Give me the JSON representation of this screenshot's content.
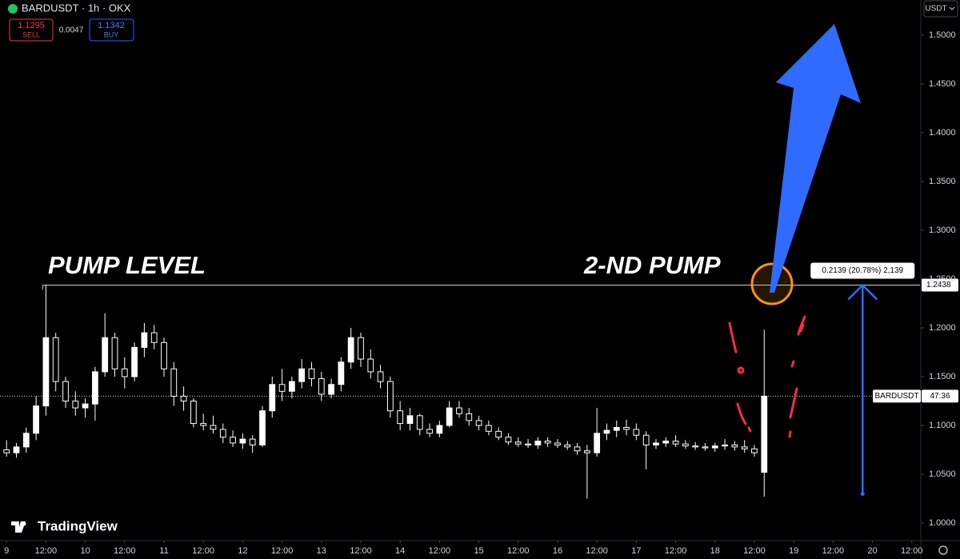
{
  "header": {
    "symbol": "BARDUSDT · 1h · OKX",
    "sell_price": "1.1295",
    "sell_label": "SELL",
    "spread": "0.0047",
    "buy_price": "1.1342",
    "buy_label": "BUY",
    "currency": "USDT",
    "brand": "TradingView"
  },
  "chart_data": {
    "type": "candlestick",
    "color": "#ffffff",
    "x": [
      0,
      3,
      6,
      9,
      12,
      15,
      18,
      21,
      24,
      27,
      30,
      33,
      36,
      39,
      42,
      45,
      48,
      51,
      54,
      57,
      60,
      63,
      66,
      69,
      72,
      75,
      78,
      81,
      84,
      87,
      90,
      93,
      96,
      99,
      102,
      105,
      108,
      111,
      114,
      117,
      120,
      123,
      126,
      129,
      132,
      135,
      138,
      141,
      144,
      147,
      150,
      153,
      156,
      159,
      162,
      165,
      168,
      171,
      174,
      177,
      180,
      183,
      186,
      189,
      192,
      195,
      198,
      201,
      204,
      207,
      210,
      213,
      216,
      219,
      222,
      225,
      228,
      231
    ],
    "open": [
      1.075,
      1.072,
      1.078,
      1.092,
      1.12,
      1.19,
      1.145,
      1.125,
      1.118,
      1.122,
      1.155,
      1.19,
      1.158,
      1.15,
      1.18,
      1.195,
      1.185,
      1.158,
      1.13,
      1.125,
      1.102,
      1.1,
      1.096,
      1.088,
      1.082,
      1.086,
      1.08,
      1.115,
      1.142,
      1.135,
      1.145,
      1.158,
      1.148,
      1.132,
      1.142,
      1.165,
      1.19,
      1.168,
      1.155,
      1.145,
      1.115,
      1.102,
      1.11,
      1.096,
      1.092,
      1.1,
      1.118,
      1.112,
      1.105,
      1.1,
      1.094,
      1.088,
      1.083,
      1.081,
      1.08,
      1.084,
      1.082,
      1.08,
      1.078,
      1.074,
      1.072,
      1.092,
      1.095,
      1.098,
      1.096,
      1.09,
      1.08,
      1.082,
      1.084,
      1.081,
      1.079,
      1.078,
      1.077,
      1.079,
      1.08,
      1.078,
      1.076,
      1.052
    ],
    "high": [
      1.085,
      1.082,
      1.098,
      1.13,
      1.2438,
      1.195,
      1.15,
      1.135,
      1.128,
      1.16,
      1.215,
      1.195,
      1.17,
      1.185,
      1.205,
      1.203,
      1.19,
      1.165,
      1.14,
      1.128,
      1.112,
      1.11,
      1.102,
      1.095,
      1.092,
      1.09,
      1.12,
      1.15,
      1.158,
      1.15,
      1.168,
      1.165,
      1.155,
      1.148,
      1.17,
      1.2,
      1.195,
      1.178,
      1.162,
      1.15,
      1.125,
      1.118,
      1.112,
      1.102,
      1.105,
      1.125,
      1.125,
      1.118,
      1.11,
      1.105,
      1.098,
      1.092,
      1.088,
      1.086,
      1.088,
      1.088,
      1.086,
      1.084,
      1.082,
      1.08,
      1.118,
      1.102,
      1.105,
      1.106,
      1.102,
      1.094,
      1.086,
      1.088,
      1.09,
      1.085,
      1.083,
      1.082,
      1.082,
      1.086,
      1.084,
      1.085,
      1.08,
      1.198
    ],
    "low": [
      1.068,
      1.067,
      1.072,
      1.085,
      1.11,
      1.135,
      1.118,
      1.11,
      1.108,
      1.105,
      1.15,
      1.15,
      1.138,
      1.145,
      1.17,
      1.178,
      1.15,
      1.12,
      1.115,
      1.098,
      1.095,
      1.092,
      1.082,
      1.078,
      1.076,
      1.072,
      1.078,
      1.108,
      1.125,
      1.128,
      1.138,
      1.14,
      1.125,
      1.128,
      1.135,
      1.158,
      1.16,
      1.148,
      1.138,
      1.108,
      1.095,
      1.095,
      1.09,
      1.088,
      1.088,
      1.098,
      1.108,
      1.1,
      1.095,
      1.09,
      1.085,
      1.08,
      1.078,
      1.077,
      1.076,
      1.078,
      1.077,
      1.075,
      1.07,
      1.025,
      1.068,
      1.085,
      1.088,
      1.09,
      1.085,
      1.055,
      1.076,
      1.078,
      1.078,
      1.076,
      1.075,
      1.074,
      1.073,
      1.075,
      1.074,
      1.072,
      1.068,
      1.027
    ],
    "close": [
      1.072,
      1.078,
      1.092,
      1.12,
      1.19,
      1.145,
      1.125,
      1.118,
      1.122,
      1.155,
      1.19,
      1.158,
      1.15,
      1.18,
      1.195,
      1.185,
      1.158,
      1.13,
      1.125,
      1.102,
      1.1,
      1.096,
      1.088,
      1.082,
      1.086,
      1.08,
      1.115,
      1.142,
      1.135,
      1.145,
      1.158,
      1.148,
      1.132,
      1.142,
      1.165,
      1.19,
      1.168,
      1.155,
      1.145,
      1.115,
      1.102,
      1.11,
      1.096,
      1.092,
      1.1,
      1.118,
      1.112,
      1.105,
      1.1,
      1.094,
      1.088,
      1.083,
      1.081,
      1.08,
      1.084,
      1.082,
      1.08,
      1.078,
      1.074,
      1.072,
      1.092,
      1.095,
      1.098,
      1.096,
      1.09,
      1.08,
      1.082,
      1.084,
      1.081,
      1.079,
      1.078,
      1.077,
      1.079,
      1.08,
      1.078,
      1.076,
      1.072,
      1.13
    ],
    "xlim": [
      -2,
      278.5
    ],
    "xticks": [
      {
        "value": 0,
        "label": "9"
      },
      {
        "value": 12,
        "label": "12:00"
      },
      {
        "value": 24,
        "label": "10"
      },
      {
        "value": 36,
        "label": "12:00"
      },
      {
        "value": 48,
        "label": "11"
      },
      {
        "value": 60,
        "label": "12:00"
      },
      {
        "value": 72,
        "label": "12"
      },
      {
        "value": 84,
        "label": "12:00"
      },
      {
        "value": 96,
        "label": "13"
      },
      {
        "value": 108,
        "label": "12:00"
      },
      {
        "value": 120,
        "label": "14"
      },
      {
        "value": 132,
        "label": "12:00"
      },
      {
        "value": 144,
        "label": "15"
      },
      {
        "value": 156,
        "label": "12:00"
      },
      {
        "value": 168,
        "label": "16"
      },
      {
        "value": 180,
        "label": "12:00"
      },
      {
        "value": 192,
        "label": "17"
      },
      {
        "value": 204,
        "label": "12:00"
      },
      {
        "value": 216,
        "label": "18"
      },
      {
        "value": 228,
        "label": "12:00"
      },
      {
        "value": 240,
        "label": "19"
      },
      {
        "value": 252,
        "label": "12:00"
      },
      {
        "value": 264,
        "label": "20"
      },
      {
        "value": 276,
        "label": "12:00"
      }
    ],
    "ylim": [
      0.982,
      1.536
    ],
    "yticks": [
      {
        "value": 1.0,
        "label": "1.0000"
      },
      {
        "value": 1.05,
        "label": "1.0500"
      },
      {
        "value": 1.1,
        "label": "1.1000"
      },
      {
        "value": 1.15,
        "label": "1.1500"
      },
      {
        "value": 1.2,
        "label": "1.2000"
      },
      {
        "value": 1.25,
        "label": "1.2500"
      },
      {
        "value": 1.3,
        "label": "1.3000"
      },
      {
        "value": 1.35,
        "label": "1.3500"
      },
      {
        "value": 1.4,
        "label": "1.4000"
      },
      {
        "value": 1.45,
        "label": "1.4500"
      },
      {
        "value": 1.5,
        "label": "1.5000"
      }
    ],
    "pump_level": {
      "value": 1.2438,
      "label": "1.2438",
      "start": 11
    },
    "current_price": {
      "value": 1.13,
      "symbol": "BARDUSDT",
      "countdown": "47:36"
    },
    "measure": {
      "from": 1.0299,
      "to": 1.2438,
      "x": 261,
      "label": "0.2139 (20.78%) 2,139"
    },
    "annotations": [
      "PUMP LEVEL",
      "2-ND PUMP"
    ]
  }
}
